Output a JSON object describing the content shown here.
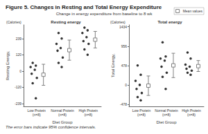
{
  "title": "Figure 5. Changes in Resting and Total Energy Expenditure",
  "subtitle": "Change in energy expenditure from baseline to 8 wk",
  "footnote": "The error bars indicate 95% confidence intervals.",
  "chart_data": [
    {
      "type": "scatter",
      "title": "Resting energy",
      "y_label": "Resting Energy,",
      "y_units": "(Calories)",
      "x_label": "Diet Group",
      "categories": [
        "Low Protein (n=8)",
        "Normal Protein (n=8)",
        "High Protein (n=8)"
      ],
      "ylim": [
        -260,
        340
      ],
      "yticks": [
        -239,
        -120,
        0,
        120,
        239
      ],
      "grid": false,
      "legend": "top-right",
      "points": {
        "color": "#000000",
        "marker": "circle",
        "values": [
          [
            60,
            40,
            30,
            10,
            -20,
            -50,
            -90,
            -200
          ],
          [
            280,
            240,
            200,
            170,
            150,
            100,
            60,
            30
          ],
          [
            320,
            300,
            280,
            250,
            220,
            200,
            160,
            120
          ]
        ]
      },
      "series": [
        {
          "name": "Mean values",
          "color": "#808080",
          "marker": "square",
          "values": [
            -27,
            154,
            231
          ],
          "error_low": [
            -105,
            80,
            170
          ],
          "error_high": [
            50,
            228,
            292
          ]
        }
      ]
    },
    {
      "type": "scatter",
      "title": "Total energy",
      "y_label": "Total Energy,",
      "y_units": "(Calories)",
      "x_label": "Diet Group",
      "categories": [
        "Low Protein (n=8)",
        "Normal Protein (n=8)",
        "High Protein (n=8)"
      ],
      "ylim": [
        -530,
        1480
      ],
      "yticks": [
        -478,
        0,
        478,
        956,
        1434
      ],
      "grid": false,
      "points": {
        "color": "#000000",
        "marker": "circle",
        "values": [
          [
            480,
            250,
            100,
            0,
            -100,
            -200,
            -300,
            -380
          ],
          [
            1050,
            700,
            650,
            600,
            450,
            300,
            200,
            -100
          ],
          [
            800,
            650,
            500,
            450,
            400,
            350,
            300,
            250
          ]
        ]
      },
      "series": [
        {
          "name": "Mean values",
          "color": "#808080",
          "marker": "square",
          "values": [
            -19,
            481,
            463
          ],
          "error_low": [
            -260,
            180,
            330
          ],
          "error_high": [
            220,
            780,
            600
          ]
        }
      ]
    }
  ]
}
